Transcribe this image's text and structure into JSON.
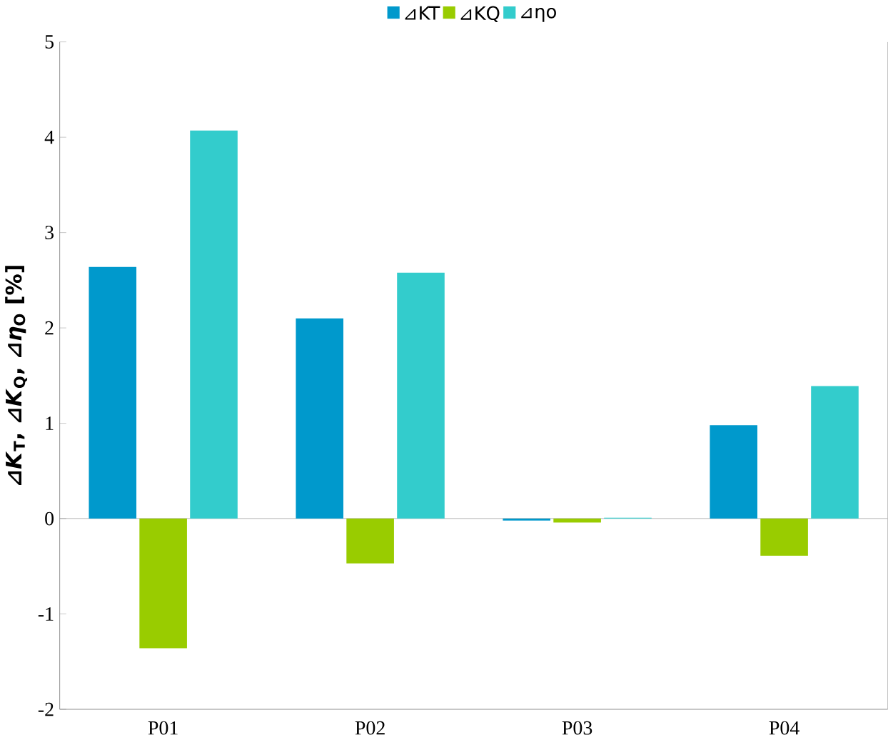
{
  "chart_data": {
    "type": "bar",
    "ylabel": "*⊿K*$_{T}$, *⊿K*$_{Q}$, *⊿η*$_{O}$ [%]",
    "categories": [
      "P01",
      "P02",
      "P03",
      "P04"
    ],
    "series": [
      {
        "name": "⊿KT",
        "color": "#0099cc",
        "values": [
          2.64,
          2.1,
          -0.02,
          0.98
        ]
      },
      {
        "name": "⊿KQ",
        "color": "#99cc00",
        "values": [
          -1.36,
          -0.47,
          -0.04,
          -0.39
        ]
      },
      {
        "name": "⊿ηo",
        "color": "#33cccc",
        "values": [
          4.07,
          2.58,
          0.01,
          1.39
        ]
      }
    ],
    "ylim": [
      -2,
      5
    ],
    "yticks": [
      -2,
      -1,
      0,
      1,
      2,
      3,
      4,
      5
    ],
    "legend": "top"
  }
}
